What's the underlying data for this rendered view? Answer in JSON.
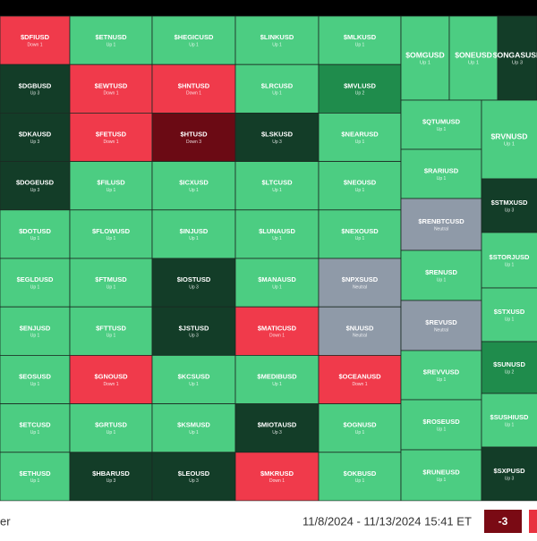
{
  "tiles": [
    {
      "label": "$DFIUSD",
      "status": "Down 1",
      "color": "#f03a4b"
    },
    {
      "label": "$DGBUSD",
      "status": "Up 3",
      "color": "#133d28"
    },
    {
      "label": "$DKAUSD",
      "status": "Up 3",
      "color": "#133d28"
    },
    {
      "label": "$DOGEUSD",
      "status": "Up 3",
      "color": "#133d28"
    },
    {
      "label": "$DOTUSD",
      "status": "Up 1",
      "color": "#4ccd82"
    },
    {
      "label": "$EGLDUSD",
      "status": "Up 1",
      "color": "#4ccd82"
    },
    {
      "label": "$ENJUSD",
      "status": "Up 1",
      "color": "#4ccd82"
    },
    {
      "label": "$EOSUSD",
      "status": "Up 1",
      "color": "#4ccd82"
    },
    {
      "label": "$ETCUSD",
      "status": "Up 1",
      "color": "#4ccd82"
    },
    {
      "label": "$ETHUSD",
      "status": "Up 1",
      "color": "#4ccd82"
    },
    {
      "label": "$ETNUSD",
      "status": "Up 1",
      "color": "#4ccd82"
    },
    {
      "label": "$EWTUSD",
      "status": "Down 1",
      "color": "#f03a4b"
    },
    {
      "label": "$FETUSD",
      "status": "Down 1",
      "color": "#f03a4b"
    },
    {
      "label": "$FILUSD",
      "status": "Up 1",
      "color": "#4ccd82"
    },
    {
      "label": "$FLOWUSD",
      "status": "Up 1",
      "color": "#4ccd82"
    },
    {
      "label": "$FTMUSD",
      "status": "Up 1",
      "color": "#4ccd82"
    },
    {
      "label": "$FTTUSD",
      "status": "Up 1",
      "color": "#4ccd82"
    },
    {
      "label": "$GNOUSD",
      "status": "Down 1",
      "color": "#f03a4b"
    },
    {
      "label": "$GRTUSD",
      "status": "Up 1",
      "color": "#4ccd82"
    },
    {
      "label": "$HBARUSD",
      "status": "Up 3",
      "color": "#133d28"
    },
    {
      "label": "$HEGICUSD",
      "status": "Up 1",
      "color": "#4ccd82"
    },
    {
      "label": "$HNTUSD",
      "status": "Down 1",
      "color": "#f03a4b"
    },
    {
      "label": "$HTUSD",
      "status": "Down 3",
      "color": "#6b0a14"
    },
    {
      "label": "$ICXUSD",
      "status": "Up 1",
      "color": "#4ccd82"
    },
    {
      "label": "$INJUSD",
      "status": "Up 1",
      "color": "#4ccd82"
    },
    {
      "label": "$IOSTUSD",
      "status": "Up 3",
      "color": "#133d28"
    },
    {
      "label": "$JSTUSD",
      "status": "Up 3",
      "color": "#133d28"
    },
    {
      "label": "$KCSUSD",
      "status": "Up 1",
      "color": "#4ccd82"
    },
    {
      "label": "$KSMUSD",
      "status": "Up 1",
      "color": "#4ccd82"
    },
    {
      "label": "$LEOUSD",
      "status": "Up 3",
      "color": "#133d28"
    },
    {
      "label": "$LINKUSD",
      "status": "Up 1",
      "color": "#4ccd82"
    },
    {
      "label": "$LRCUSD",
      "status": "Up 1",
      "color": "#4ccd82"
    },
    {
      "label": "$LSKUSD",
      "status": "Up 3",
      "color": "#133d28"
    },
    {
      "label": "$LTCUSD",
      "status": "Up 1",
      "color": "#4ccd82"
    },
    {
      "label": "$LUNAUSD",
      "status": "Up 1",
      "color": "#4ccd82"
    },
    {
      "label": "$MANAUSD",
      "status": "Up 1",
      "color": "#4ccd82"
    },
    {
      "label": "$MATICUSD",
      "status": "Down 1",
      "color": "#f03a4b"
    },
    {
      "label": "$MEDIBUSD",
      "status": "Up 1",
      "color": "#4ccd82"
    },
    {
      "label": "$MIOTAUSD",
      "status": "Up 3",
      "color": "#133d28"
    },
    {
      "label": "$MKRUSD",
      "status": "Down 1",
      "color": "#f03a4b"
    },
    {
      "label": "$MLKUSD",
      "status": "Up 1",
      "color": "#4ccd82"
    },
    {
      "label": "$MVLUSD",
      "status": "Up 2",
      "color": "#1f8c4c"
    },
    {
      "label": "$NEARUSD",
      "status": "Up 1",
      "color": "#4ccd82"
    },
    {
      "label": "$NEOUSD",
      "status": "Up 1",
      "color": "#4ccd82"
    },
    {
      "label": "$NEXOUSD",
      "status": "Up 1",
      "color": "#4ccd82"
    },
    {
      "label": "$NPXSUSD",
      "status": "Neutral",
      "color": "#8f9aa8"
    },
    {
      "label": "$NUUSD",
      "status": "Neutral",
      "color": "#8f9aa8"
    },
    {
      "label": "$OCEANUSD",
      "status": "Down 1",
      "color": "#f03a4b"
    },
    {
      "label": "$OGNUSD",
      "status": "Up 1",
      "color": "#4ccd82"
    },
    {
      "label": "$OKBUSD",
      "status": "Up 1",
      "color": "#4ccd82"
    },
    {
      "label": "$OMGUSD",
      "status": "Up 1",
      "color": "#4ccd82"
    },
    {
      "label": "$ONEUSD",
      "status": "Up 1",
      "color": "#4ccd82"
    },
    {
      "label": "$ONGASUSD",
      "status": "Up 3",
      "color": "#133d28"
    },
    {
      "label": "$QTUMUSD",
      "status": "Up 1",
      "color": "#4ccd82"
    },
    {
      "label": "$RARIUSD",
      "status": "Up 1",
      "color": "#4ccd82"
    },
    {
      "label": "$RENBTCUSD",
      "status": "Neutral",
      "color": "#8f9aa8"
    },
    {
      "label": "$RENUSD",
      "status": "Up 1",
      "color": "#4ccd82"
    },
    {
      "label": "$REVUSD",
      "status": "Neutral",
      "color": "#8f9aa8"
    },
    {
      "label": "$REVVUSD",
      "status": "Up 1",
      "color": "#4ccd82"
    },
    {
      "label": "$ROSEUSD",
      "status": "Up 1",
      "color": "#4ccd82"
    },
    {
      "label": "$RUNEUSD",
      "status": "Up 1",
      "color": "#4ccd82"
    },
    {
      "label": "$RVNUSD",
      "status": "Up 1",
      "color": "#4ccd82"
    },
    {
      "label": "$STMXUSD",
      "status": "Up 3",
      "color": "#133d28"
    },
    {
      "label": "$STORJUSD",
      "status": "Up 1",
      "color": "#4ccd82"
    },
    {
      "label": "$STXUSD",
      "status": "Up 1",
      "color": "#4ccd82"
    },
    {
      "label": "$SUNUSD",
      "status": "Up 2",
      "color": "#1f8c4c"
    },
    {
      "label": "$SUSHIUSD",
      "status": "Up 1",
      "color": "#4ccd82"
    },
    {
      "label": "$SXPUSD",
      "status": "Up 3",
      "color": "#133d28"
    }
  ],
  "footer": {
    "label": "er",
    "date_range": "11/8/2024 - 11/13/2024 15:41 ET",
    "badge": "-3"
  }
}
